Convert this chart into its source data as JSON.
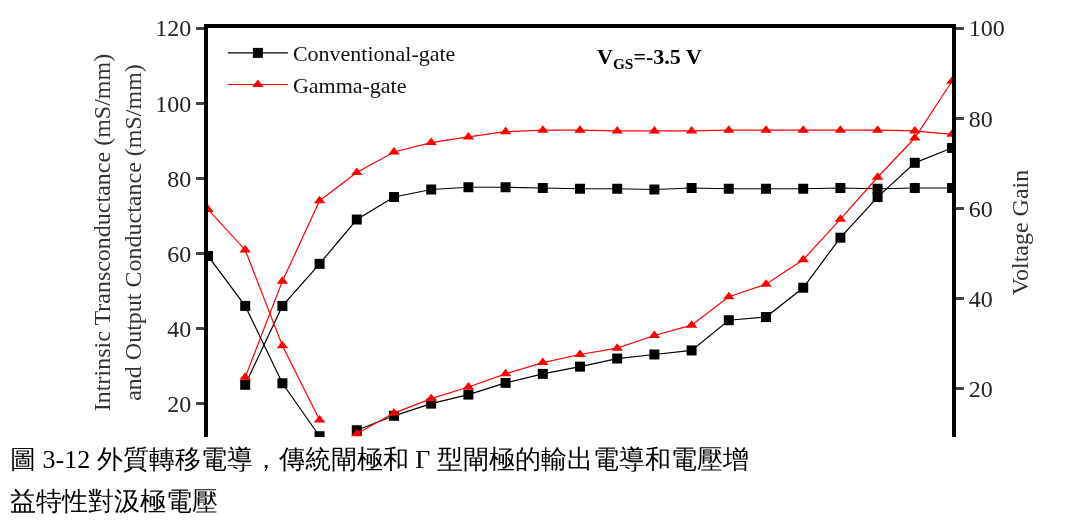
{
  "chart_data": {
    "type": "line",
    "categories": [
      null,
      null,
      null,
      null,
      null,
      null,
      null,
      null,
      null,
      null,
      null,
      null,
      null,
      null,
      null,
      null,
      null,
      null,
      null,
      null,
      null
    ],
    "series": [
      {
        "name": "Conventional-gate",
        "color": "#000000",
        "marker": "square",
        "values": [
          null,
          25,
          46,
          57.2,
          69,
          75,
          77,
          77.6,
          77.6,
          77.4,
          77.2,
          77.2,
          77,
          77.4,
          77.2,
          77.2,
          77.2,
          77.4,
          77.2,
          77.4,
          77.4
        ]
      },
      {
        "name": "Gamma-gate",
        "color": "#ff0000",
        "marker": "triangle",
        "values": [
          null,
          27,
          52.6,
          74,
          81.5,
          87,
          89.5,
          91,
          92.4,
          92.8,
          92.8,
          92.6,
          92.6,
          92.6,
          92.8,
          92.8,
          92.8,
          92.8,
          92.8,
          92.6,
          91.7
        ]
      },
      {
        "color": "#000000",
        "marker": "square",
        "values": [
          59.3,
          46,
          25.4,
          11.3,
          null,
          null,
          null,
          null,
          null,
          null,
          null,
          null,
          null,
          null,
          null,
          null,
          null,
          null,
          null,
          null,
          null
        ]
      },
      {
        "color": "#ff0000",
        "marker": "triangle",
        "values": [
          71.7,
          60.9,
          35.4,
          15.6,
          null,
          null,
          null,
          null,
          null,
          null,
          null,
          null,
          null,
          null,
          null,
          null,
          null,
          null,
          null,
          null,
          null
        ]
      },
      {
        "color": "#000000",
        "marker": "square",
        "axis": "y2",
        "values": [
          null,
          null,
          null,
          null,
          10.8,
          14,
          16.7,
          18.7,
          21.3,
          23.3,
          24.9,
          26.7,
          27.6,
          28.5,
          35.2,
          35.9,
          42.4,
          53.5,
          62.5,
          70.1,
          73.4
        ]
      },
      {
        "color": "#ff0000",
        "marker": "triangle",
        "axis": "y2",
        "values": [
          null,
          null,
          null,
          null,
          10,
          14.6,
          17.8,
          20.4,
          23.3,
          25.8,
          27.6,
          29,
          31.8,
          34.1,
          40.4,
          43.2,
          48.6,
          57.6,
          66.9,
          75.6,
          88.2
        ]
      }
    ],
    "ylabel": "Intrinsic Transconductance (mS/mm)\nand Output Conductance (mS/mm)",
    "y2label": "Voltage Gain",
    "ylim": [
      11.1,
      120
    ],
    "yticks": [
      20,
      40,
      60,
      80,
      100,
      120
    ],
    "y2lim": [
      9.3,
      100
    ],
    "y2ticks": [
      20,
      40,
      60,
      80,
      100
    ],
    "tick_labels": "y",
    "legend": "top left",
    "annotations": [
      "V$_{GS}$=-3.5 V",
      "圖 3-12 外質轉移電導，傳統閘極和 Γ 型閘極的輸出電導和電壓增",
      "益特性對汲極電壓"
    ]
  }
}
